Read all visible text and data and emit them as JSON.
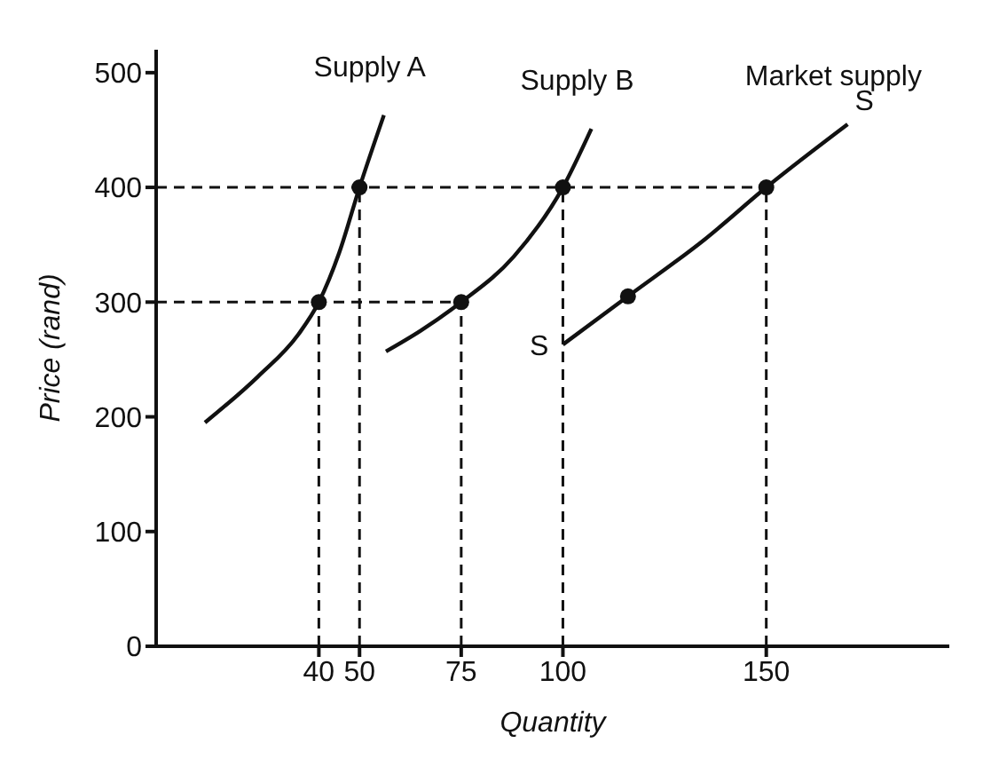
{
  "chart_data": {
    "type": "line",
    "xlabel": "Quantity",
    "ylabel": "Price (rand)",
    "xlim": [
      0,
      195
    ],
    "ylim": [
      0,
      520
    ],
    "xticks": [
      40,
      50,
      75,
      100,
      150
    ],
    "yticks": [
      0,
      100,
      200,
      300,
      400,
      500
    ],
    "grid": false,
    "legend": false,
    "series": [
      {
        "name": "Supply A",
        "color": "#111111",
        "line_style": "solid",
        "marker": "none",
        "x": [
          12,
          25,
          35,
          40,
          45,
          50,
          56
        ],
        "values": [
          195,
          235,
          272,
          300,
          343,
          400,
          463
        ]
      },
      {
        "name": "Supply B",
        "color": "#111111",
        "line_style": "solid",
        "marker": "none",
        "x": [
          56.5,
          65,
          75,
          88,
          100,
          107
        ],
        "values": [
          257,
          275,
          300,
          340,
          400,
          451
        ]
      },
      {
        "name": "Market supply",
        "color": "#111111",
        "line_style": "solid",
        "marker": "none",
        "x": [
          100,
          116,
          135,
          150,
          170
        ],
        "values": [
          263,
          305,
          355,
          400,
          455
        ]
      },
      {
        "type": "line",
        "color": "#111111",
        "line_style": "dashed",
        "marker": "none",
        "x": [
          0,
          150
        ],
        "values": [
          400,
          400
        ]
      },
      {
        "type": "line",
        "color": "#111111",
        "line_style": "dashed",
        "marker": "none",
        "x": [
          0,
          75
        ],
        "values": [
          300,
          300
        ]
      },
      {
        "type": "line",
        "color": "#111111",
        "line_style": "dashed",
        "marker": "none",
        "x": [
          40,
          40
        ],
        "values": [
          0,
          300
        ]
      },
      {
        "type": "line",
        "color": "#111111",
        "line_style": "dashed",
        "marker": "none",
        "x": [
          50,
          50
        ],
        "values": [
          0,
          400
        ]
      },
      {
        "type": "line",
        "color": "#111111",
        "line_style": "dashed",
        "marker": "none",
        "x": [
          75,
          75
        ],
        "values": [
          0,
          300
        ]
      },
      {
        "type": "line",
        "color": "#111111",
        "line_style": "dashed",
        "marker": "none",
        "x": [
          100,
          100
        ],
        "values": [
          0,
          400
        ]
      },
      {
        "type": "line",
        "color": "#111111",
        "line_style": "dashed",
        "marker": "none",
        "x": [
          150,
          150
        ],
        "values": [
          0,
          400
        ]
      },
      {
        "type": "scatter",
        "color": "#111111",
        "marker": "circle",
        "x": [
          40,
          50,
          75,
          100,
          116,
          150
        ],
        "values": [
          300,
          400,
          300,
          400,
          305,
          400
        ]
      }
    ],
    "annotations": [
      {
        "text": "S",
        "x": 170,
        "y": 455
      },
      {
        "text": "S",
        "x": 100,
        "y": 263
      }
    ]
  }
}
